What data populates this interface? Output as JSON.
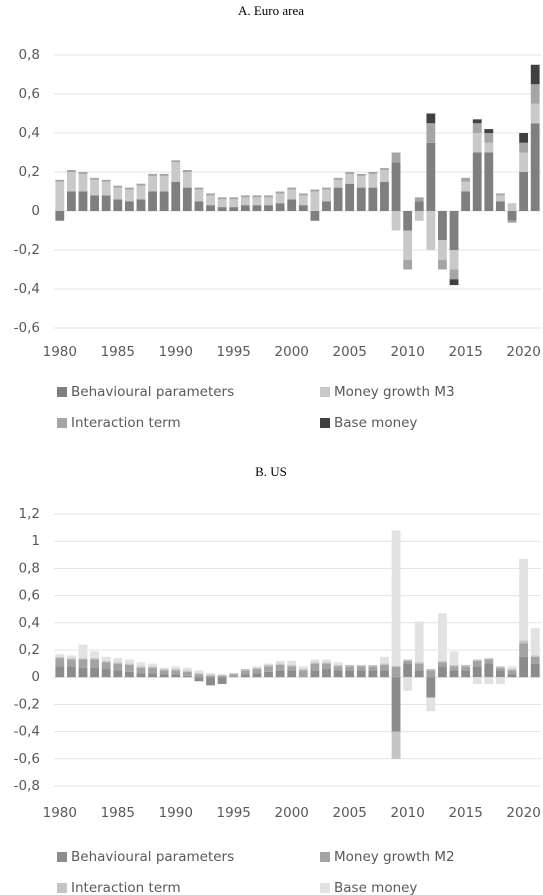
{
  "chart_data": [
    {
      "type": "bar",
      "stacked": true,
      "title": "A.  Euro area",
      "categories": [
        "1980",
        null,
        null,
        null,
        null,
        "1985",
        null,
        null,
        null,
        null,
        "1990",
        null,
        null,
        null,
        null,
        "1995",
        null,
        null,
        null,
        null,
        "2000",
        null,
        null,
        null,
        null,
        "2005",
        null,
        null,
        null,
        null,
        "2010",
        null,
        null,
        null,
        null,
        "2015",
        null,
        null,
        null,
        null,
        "2020",
        null
      ],
      "series": [
        {
          "name": "Behavioural parameters",
          "color": "#7f7f7f",
          "values": [
            -0.05,
            0.1,
            0.1,
            0.08,
            0.08,
            0.06,
            0.05,
            0.06,
            0.1,
            0.1,
            0.15,
            0.12,
            0.05,
            0.03,
            0.02,
            0.02,
            0.03,
            0.03,
            0.03,
            0.04,
            0.06,
            0.03,
            -0.05,
            0.05,
            0.12,
            0.14,
            0.12,
            0.12,
            0.15,
            0.25,
            -0.1,
            0.05,
            0.35,
            -0.15,
            -0.2,
            0.1,
            0.3,
            0.3,
            0.05,
            -0.05,
            0.2,
            0.45
          ]
        },
        {
          "name": "Money growth M3",
          "color": "#c9c9c9",
          "values": [
            0.15,
            0.1,
            0.09,
            0.08,
            0.07,
            0.06,
            0.06,
            0.07,
            0.08,
            0.08,
            0.1,
            0.08,
            0.06,
            0.05,
            0.04,
            0.04,
            0.04,
            0.04,
            0.04,
            0.05,
            0.05,
            0.05,
            0.1,
            0.06,
            0.04,
            0.05,
            0.06,
            0.07,
            0.06,
            -0.1,
            -0.15,
            -0.05,
            -0.2,
            -0.1,
            -0.1,
            0.05,
            0.1,
            0.05,
            0.03,
            0.04,
            0.1,
            0.1
          ]
        },
        {
          "name": "Interaction term",
          "color": "#a5a5a5",
          "values": [
            0.01,
            0.01,
            0.01,
            0.01,
            0.01,
            0.01,
            0.01,
            0.01,
            0.01,
            0.01,
            0.01,
            0.01,
            0.01,
            0.01,
            0.01,
            0.01,
            0.01,
            0.01,
            0.01,
            0.01,
            0.01,
            0.01,
            0.01,
            0.01,
            0.01,
            0.01,
            0.01,
            0.01,
            0.01,
            0.05,
            -0.05,
            0.02,
            0.1,
            -0.05,
            -0.05,
            0.02,
            0.05,
            0.05,
            0.01,
            -0.01,
            0.05,
            0.1
          ]
        },
        {
          "name": "Base money",
          "color": "#404040",
          "values": [
            0,
            0,
            0,
            0,
            0,
            0,
            0,
            0,
            0,
            0,
            0,
            0,
            0,
            0,
            0,
            0,
            0,
            0,
            0,
            0,
            0,
            0,
            0,
            0,
            0,
            0,
            0,
            0,
            0,
            0,
            0,
            0,
            0.05,
            0,
            -0.03,
            0,
            0.02,
            0.02,
            0,
            0,
            0.05,
            0.1
          ]
        }
      ],
      "ylim": [
        -0.6,
        0.8
      ],
      "yticks": [
        {
          "value": 0.8,
          "label": "0,8"
        },
        {
          "value": 0.6,
          "label": "0,6"
        },
        {
          "value": 0.4,
          "label": "0,4"
        },
        {
          "value": 0.2,
          "label": "0,2"
        },
        0,
        {
          "value": -0.2,
          "label": "-0,2"
        },
        {
          "value": -0.4,
          "label": "-0,4"
        },
        {
          "value": -0.6,
          "label": "-0,6"
        }
      ],
      "grid": true,
      "legend": "bottom"
    },
    {
      "type": "bar",
      "stacked": true,
      "title": "B.  US",
      "categories": [
        "1980",
        null,
        null,
        null,
        null,
        "1985",
        null,
        null,
        null,
        null,
        "1990",
        null,
        null,
        null,
        null,
        "1995",
        null,
        null,
        null,
        null,
        "2000",
        null,
        null,
        null,
        null,
        "2005",
        null,
        null,
        null,
        null,
        "2010",
        null,
        null,
        null,
        null,
        "2015",
        null,
        null,
        null,
        null,
        "2020",
        null
      ],
      "series": [
        {
          "name": "Behavioural parameters",
          "color": "#8c8c8c",
          "values": [
            0.08,
            0.08,
            0.07,
            0.07,
            0.06,
            0.05,
            0.04,
            0.03,
            0.03,
            0.02,
            0.02,
            0.01,
            -0.03,
            -0.06,
            -0.05,
            0,
            0.02,
            0.03,
            0.04,
            0.05,
            0.05,
            0,
            0.05,
            0.06,
            0.05,
            0.05,
            0.05,
            0.05,
            0.05,
            -0.4,
            0.1,
            0.05,
            -0.15,
            0.08,
            0.05,
            0.05,
            0.08,
            0.1,
            0.05,
            0.02,
            0.15,
            0.1
          ]
        },
        {
          "name": "Money growth M2",
          "color": "#a3a3a3",
          "values": [
            0.06,
            0.05,
            0.06,
            0.06,
            0.05,
            0.05,
            0.05,
            0.04,
            0.04,
            0.03,
            0.03,
            0.03,
            0.02,
            0.01,
            0.01,
            0.02,
            0.03,
            0.03,
            0.04,
            0.04,
            0.03,
            0.05,
            0.05,
            0.04,
            0.03,
            0.03,
            0.03,
            0.03,
            0.04,
            0.08,
            0.02,
            0.05,
            0.05,
            0.03,
            0.03,
            0.03,
            0.04,
            0.03,
            0.02,
            0.03,
            0.1,
            0.05
          ]
        },
        {
          "name": "Interaction term",
          "color": "#c4c4c4",
          "values": [
            0.01,
            0.01,
            0.01,
            0.01,
            0.01,
            0.01,
            0.01,
            0.01,
            0.01,
            0.01,
            0.01,
            0.01,
            0.01,
            0.01,
            0.01,
            0.01,
            0.01,
            0.01,
            0.01,
            0.01,
            0.01,
            0.01,
            0.01,
            0.01,
            0.01,
            0.01,
            0.01,
            0.01,
            0.01,
            -0.2,
            0.01,
            0.01,
            0.01,
            0.01,
            0.01,
            0.01,
            0.01,
            0.01,
            0.01,
            0.01,
            0.02,
            0.01
          ]
        },
        {
          "name": "Base money",
          "color": "#e2e2e2",
          "values": [
            0.02,
            0.02,
            0.1,
            0.05,
            0.03,
            0.03,
            0.03,
            0.03,
            0.02,
            0.01,
            0.02,
            0.02,
            0.02,
            0.01,
            0,
            0,
            0,
            0.01,
            0.01,
            0.02,
            0.03,
            0.02,
            0.02,
            0.02,
            0.02,
            0,
            0,
            0,
            0.05,
            1.0,
            -0.1,
            0.3,
            -0.1,
            0.35,
            0.1,
            0,
            -0.05,
            -0.05,
            -0.05,
            0.02,
            0.6,
            0.2
          ]
        }
      ],
      "ylim": [
        -0.8,
        1.2
      ],
      "yticks": [
        {
          "value": 1.2,
          "label": "1,2"
        },
        1,
        {
          "value": 0.8,
          "label": "0,8"
        },
        {
          "value": 0.6,
          "label": "0,6"
        },
        {
          "value": 0.4,
          "label": "0,4"
        },
        {
          "value": 0.2,
          "label": "0,2"
        },
        0,
        {
          "value": -0.2,
          "label": "-0,2"
        },
        {
          "value": -0.4,
          "label": "-0,4"
        },
        {
          "value": -0.6,
          "label": "-0,6"
        },
        {
          "value": -0.8,
          "label": "-0,8"
        }
      ],
      "grid": true,
      "legend": "bottom"
    }
  ]
}
